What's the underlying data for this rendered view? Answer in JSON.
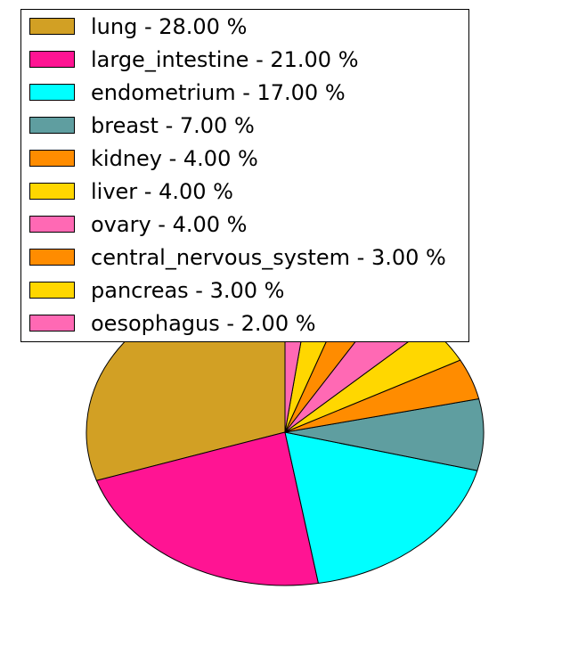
{
  "chart_data": {
    "type": "pie",
    "slices": [
      {
        "label": "lung - 28.00 %",
        "category": "lung",
        "value": 28.0,
        "color": "#D2A024"
      },
      {
        "label": "large_intestine - 21.00 %",
        "category": "large_intestine",
        "value": 21.0,
        "color": "#FF1493"
      },
      {
        "label": "endometrium - 17.00 %",
        "category": "endometrium",
        "value": 17.0,
        "color": "#00FFFF"
      },
      {
        "label": "breast - 7.00 %",
        "category": "breast",
        "value": 7.0,
        "color": "#5F9EA0"
      },
      {
        "label": "kidney - 4.00 %",
        "category": "kidney",
        "value": 4.0,
        "color": "#FF8C00"
      },
      {
        "label": "liver - 4.00 %",
        "category": "liver",
        "value": 4.0,
        "color": "#FFD700"
      },
      {
        "label": "ovary - 4.00 %",
        "category": "ovary",
        "value": 4.0,
        "color": "#FF69B4"
      },
      {
        "label": "central_nervous_system - 3.00 %",
        "category": "central_nervous_system",
        "value": 3.0,
        "color": "#FF8C00"
      },
      {
        "label": "pancreas - 3.00 %",
        "category": "pancreas",
        "value": 3.0,
        "color": "#FFD700"
      },
      {
        "label": "oesophagus - 2.00 %",
        "category": "oesophagus",
        "value": 2.0,
        "color": "#FF69B4"
      }
    ],
    "legend": "top-left"
  }
}
